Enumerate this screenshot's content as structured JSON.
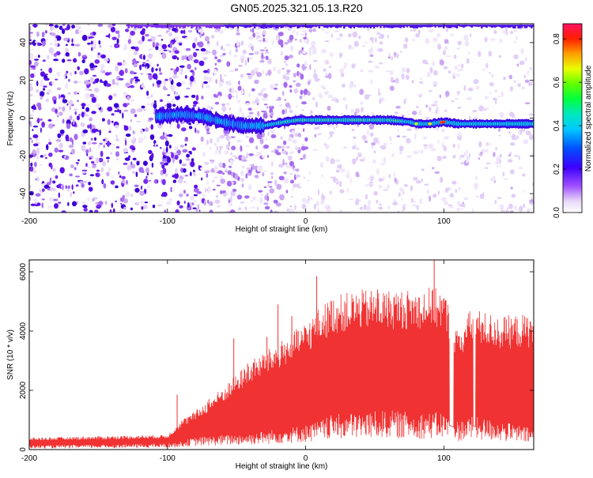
{
  "title": "GN05.2025.321.05.13.R20",
  "chart_data": [
    {
      "type": "heatmap",
      "xlabel": "Height of straight line (km)",
      "ylabel": "Frequency (Hz)",
      "xlim": [
        -200,
        165
      ],
      "ylim": [
        -50,
        50
      ],
      "xticks": [
        "-200",
        "-100",
        "0",
        "100"
      ],
      "yticks": [
        "-40",
        "-20",
        "0",
        "20",
        "40"
      ],
      "colorbar": {
        "label": "Normalized spectral amplitude",
        "range": [
          0.0,
          0.87
        ],
        "ticks": [
          "0.0",
          "0.2",
          "0.4",
          "0.6",
          "0.8"
        ]
      },
      "ridge": {
        "description_points_x": [
          -105,
          -90,
          -75,
          -60,
          -45,
          -30,
          -15,
          -5,
          0,
          20,
          40,
          60,
          75,
          80,
          90,
          100,
          110,
          130,
          165
        ],
        "description_points_y": [
          1,
          2,
          1,
          -2,
          -4,
          -4,
          -2,
          -1,
          -1,
          -1,
          -1,
          -1,
          -2,
          -3,
          -3,
          -2,
          -3,
          -3,
          -3
        ]
      }
    },
    {
      "type": "line",
      "xlabel": "Height of straight line (km)",
      "ylabel": "SNR (10 * v/v)",
      "xlim": [
        -200,
        165
      ],
      "ylim": [
        0,
        6400
      ],
      "xticks": [
        "-200",
        "-100",
        "0",
        "100"
      ],
      "yticks": [
        "0",
        "2000",
        "4000",
        "6000"
      ],
      "color": "#f03232",
      "series": [
        {
          "x": [
            -200,
            -150,
            -100,
            -90,
            -80,
            -60,
            -40,
            -20,
            0,
            10,
            20,
            40,
            60,
            80,
            90,
            100,
            110,
            120,
            140,
            165
          ],
          "upper": [
            400,
            450,
            500,
            1000,
            1300,
            2100,
            3000,
            3600,
            4300,
            4800,
            5200,
            5400,
            5400,
            5400,
            5500,
            5400,
            4000,
            4800,
            4500,
            4600
          ],
          "lower": [
            100,
            120,
            150,
            200,
            300,
            350,
            400,
            500,
            600,
            700,
            850,
            900,
            950,
            900,
            900,
            900,
            700,
            800,
            700,
            500
          ]
        }
      ],
      "spikes": [
        {
          "x": -93,
          "y": 1850
        },
        {
          "x": -70,
          "y": 1700
        },
        {
          "x": -52,
          "y": 3750
        },
        {
          "x": -42,
          "y": 2900
        },
        {
          "x": -28,
          "y": 3800
        },
        {
          "x": -20,
          "y": 4900
        },
        {
          "x": -10,
          "y": 4500
        },
        {
          "x": 8,
          "y": 5850
        },
        {
          "x": 52,
          "y": 5400
        },
        {
          "x": 93,
          "y": 6400
        }
      ]
    }
  ]
}
